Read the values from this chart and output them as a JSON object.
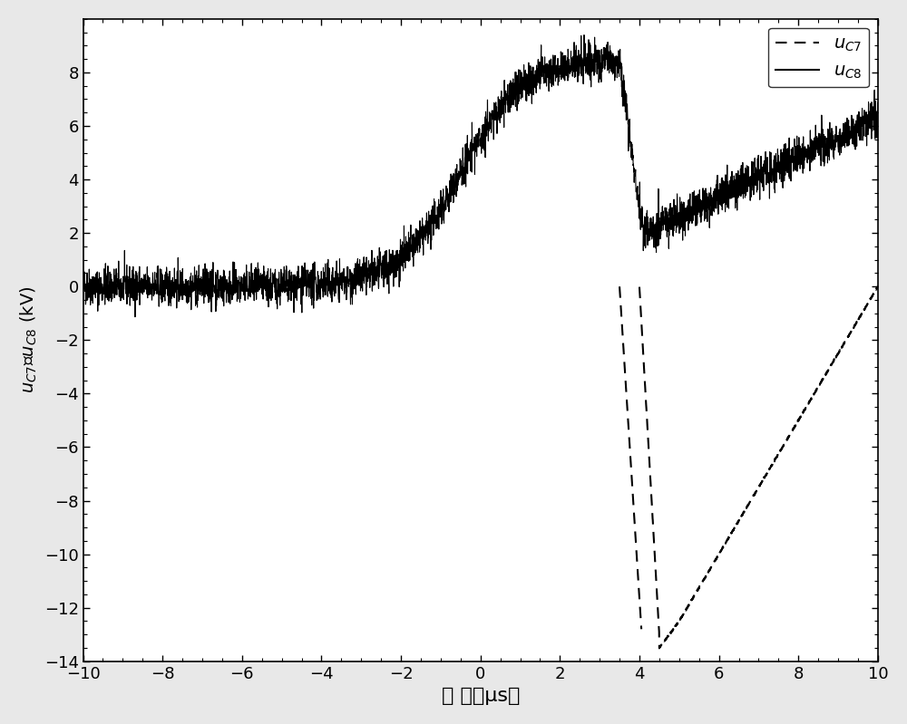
{
  "title": "",
  "xlabel": "时间（μs）",
  "ylabel": "$u_{C7}$， $u_{C8}$ (kV)",
  "xlim": [
    -10,
    10
  ],
  "ylim": [
    -14,
    10
  ],
  "xticks": [
    -10,
    -8,
    -6,
    -4,
    -2,
    0,
    2,
    4,
    6,
    8,
    10
  ],
  "yticks": [
    -14,
    -12,
    -10,
    -8,
    -6,
    -4,
    -2,
    0,
    2,
    4,
    6,
    8
  ],
  "legend_labels": [
    "$u_{C7}$",
    "$u_{C8}$"
  ],
  "bg_color": "#e8e8e8",
  "plot_bg_color": "#ffffff",
  "noise_amplitude_c8": 0.35,
  "noise_amplitude_c7": 0.05
}
